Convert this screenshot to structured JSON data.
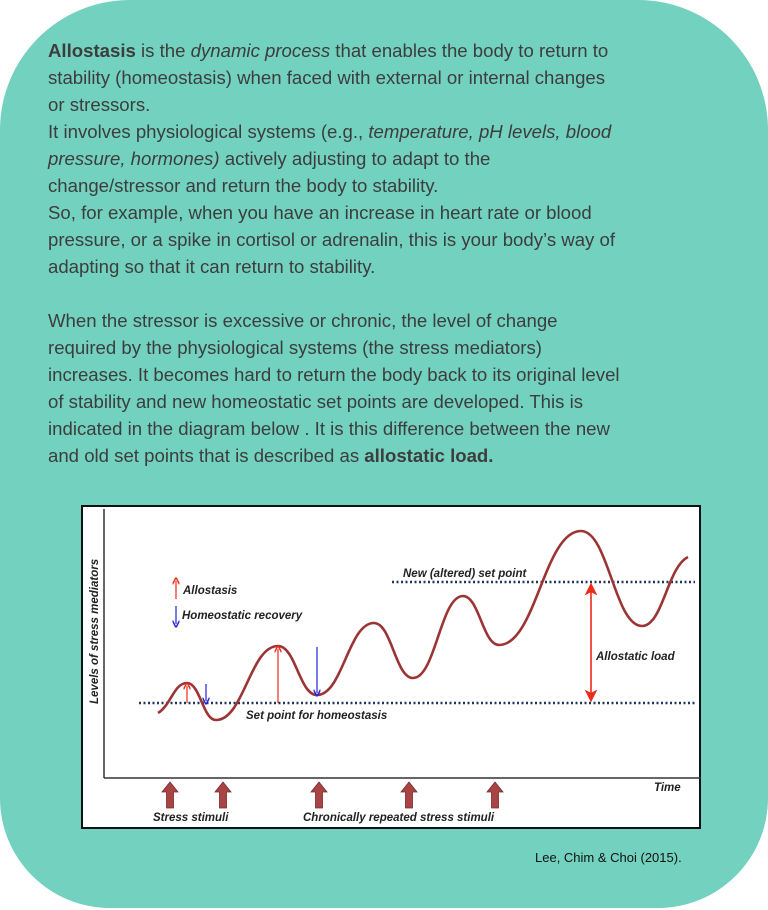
{
  "text": {
    "p1": {
      "l1": {
        "b": "Allostasis",
        "a": " is the ",
        "i": "dynamic process",
        "c": " that enables the body to return to"
      },
      "l2": "stability (homeostasis) when faced with external or internal changes",
      "l3": "or stressors.",
      "l4": {
        "a": "It involves physiological systems (e.g., ",
        "i": "temperature, pH levels, blood"
      },
      "l5": {
        "i": "pressure, hormones)",
        "a": " actively adjusting to adapt to the"
      },
      "l6": "change/stressor and return the body to stability.",
      "l7": "So, for example, when you have an increase in heart rate or blood",
      "l8": "pressure, or a spike in cortisol or adrenalin, this is your body’s way of",
      "l9": "adapting so that it can return to stability."
    },
    "p2": {
      "l1": "When the stressor is excessive or chronic, the level of change",
      "l2": "required by the physiological systems (the stress mediators)",
      "l3": "increases. It becomes hard to return the body back to its original level",
      "l4": "of stability and new homeostatic set points are developed. This is",
      "l5": "indicated in the diagram below .  It is  this difference between the new",
      "l6": {
        "a": "and old set points that is described as ",
        "b": "allostatic load."
      }
    }
  },
  "diagram": {
    "y_axis_label": "Levels of stress mediators",
    "x_axis_label": "Time",
    "legend_allostasis": "Allostasis",
    "legend_recovery": "Homeostatic recovery",
    "new_set_point": "New (altered) set point",
    "set_point": "Set point for homeostasis",
    "allostatic_load": "Allostatic load",
    "stress_stimuli": "Stress stimuli",
    "chronic_stimuli": "Chronically repeated stress stimuli",
    "colors": {
      "curve": "#9b3535",
      "allostasis": "#ee2a1a",
      "recovery": "#2222dd",
      "setpoint": "#1f3559",
      "stimulus": "#a84444"
    }
  },
  "citation": "Lee, Chim & Choi (2015)."
}
